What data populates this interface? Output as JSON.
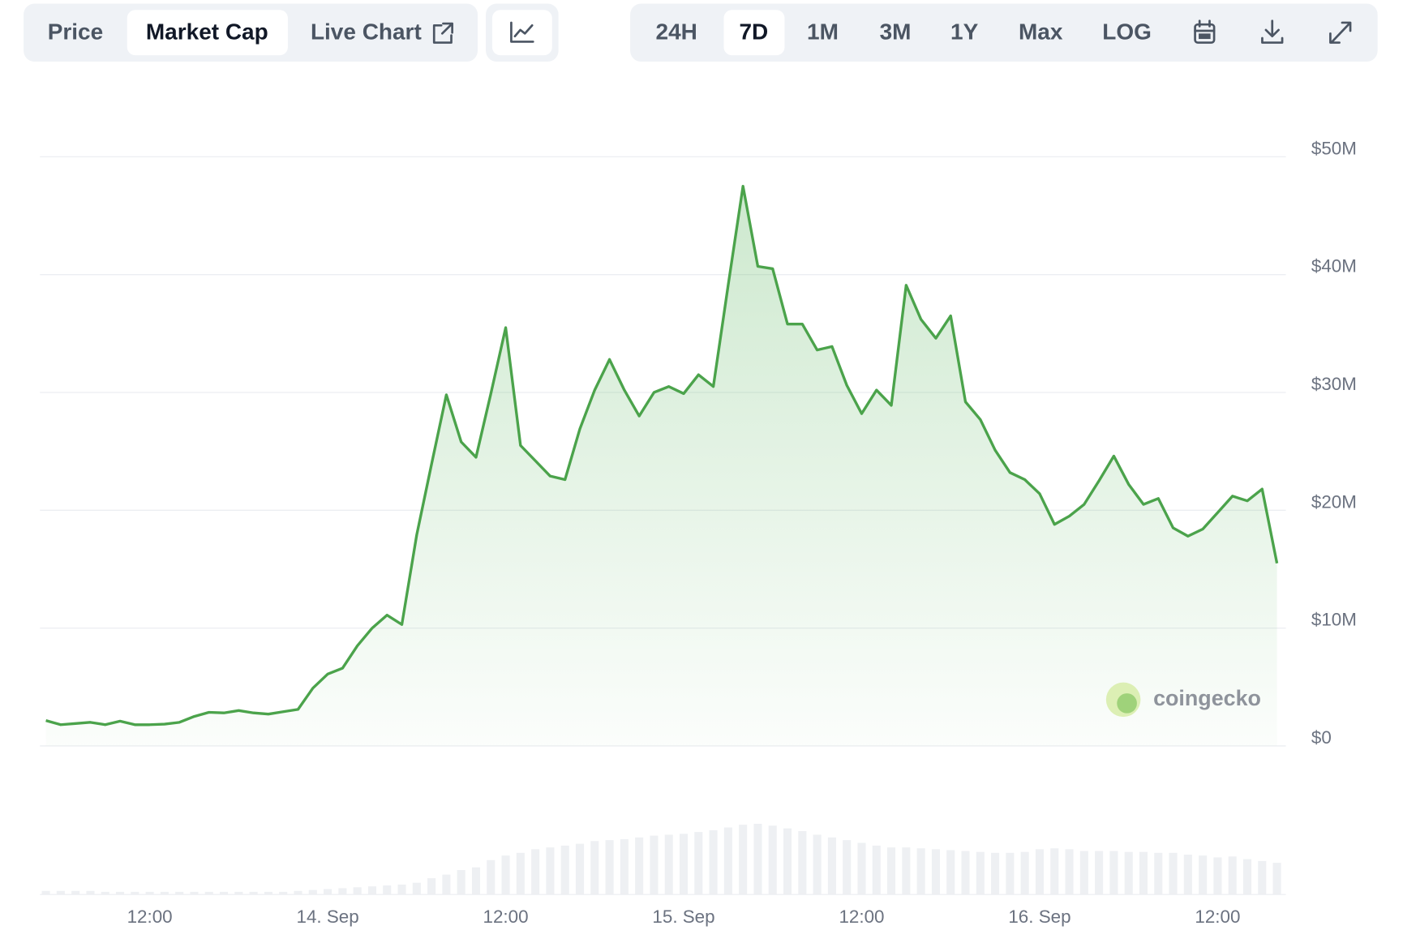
{
  "toolbar": {
    "tabs": [
      "Price",
      "Market Cap",
      "Live Chart"
    ],
    "ranges": [
      "24H",
      "7D",
      "1M",
      "3M",
      "1Y",
      "Max",
      "LOG"
    ]
  },
  "chart_data": {
    "type": "area",
    "x": [
      5,
      6,
      7,
      8,
      9,
      10,
      11,
      12,
      13,
      14,
      15,
      16,
      17,
      18,
      19,
      20,
      21,
      22,
      23,
      24,
      25,
      26,
      27,
      28,
      29,
      30,
      31,
      32,
      33,
      34,
      35,
      36,
      37,
      38,
      39,
      40,
      41,
      42,
      43,
      44,
      45,
      46,
      47,
      48,
      49,
      50,
      51,
      52,
      53,
      54,
      55,
      56,
      57,
      58,
      59,
      60,
      61,
      62,
      63,
      64,
      65,
      66,
      67,
      68,
      69,
      70,
      71,
      72,
      73,
      74,
      75,
      76,
      77,
      78,
      79,
      80,
      81,
      82,
      83,
      84,
      85,
      86,
      87,
      88
    ],
    "values": [
      2150000,
      1800000,
      1900000,
      2000000,
      1800000,
      2100000,
      1800000,
      1800000,
      1850000,
      2000000,
      2500000,
      2850000,
      2800000,
      3000000,
      2800000,
      2700000,
      2900000,
      3100000,
      4900000,
      6100000,
      6600000,
      8500000,
      10000000,
      11100000,
      10300000,
      17900000,
      23900000,
      29800000,
      25800000,
      24500000,
      29900000,
      35500000,
      25500000,
      24200000,
      22900000,
      22600000,
      26900000,
      30200000,
      32800000,
      30200000,
      28000000,
      30000000,
      30500000,
      29900000,
      31500000,
      30500000,
      39100000,
      47500000,
      40700000,
      40500000,
      35800000,
      35800000,
      33600000,
      33900000,
      30600000,
      28200000,
      30200000,
      28900000,
      39100000,
      36200000,
      34600000,
      36500000,
      29200000,
      27700000,
      25100000,
      23200000,
      22600000,
      21400000,
      18800000,
      19500000,
      20500000,
      22500000,
      24600000,
      22200000,
      20500000,
      21000000,
      18500000,
      17800000,
      18400000,
      19800000,
      21200000,
      20800000,
      21800000,
      15500000
    ],
    "color": "#4ba34b",
    "xlim": [
      4.6,
      88.6
    ],
    "xticks": [
      {
        "value": 12,
        "label": "12:00"
      },
      {
        "value": 24,
        "label": "14. Sep"
      },
      {
        "value": 36,
        "label": "12:00"
      },
      {
        "value": 48,
        "label": "15. Sep"
      },
      {
        "value": 60,
        "label": "12:00"
      },
      {
        "value": 72,
        "label": "16. Sep"
      },
      {
        "value": 84,
        "label": "12:00"
      }
    ],
    "ylim": [
      0,
      50000000
    ],
    "yticks": [
      {
        "value": 0,
        "label": "$0"
      },
      {
        "value": 10000000,
        "label": "$10M"
      },
      {
        "value": 20000000,
        "label": "$20M"
      },
      {
        "value": 30000000,
        "label": "$30M"
      },
      {
        "value": 40000000,
        "label": "$40M"
      },
      {
        "value": 50000000,
        "label": "$50M"
      }
    ],
    "grid": true,
    "volume": [
      4,
      4,
      4,
      4,
      3,
      3,
      3,
      3,
      3,
      3,
      3,
      3,
      3,
      3,
      3,
      3,
      3,
      4,
      5,
      6,
      7,
      8,
      9,
      10,
      11,
      13,
      18,
      22,
      27,
      30,
      38,
      43,
      46,
      50,
      52,
      54,
      56,
      59,
      60,
      61,
      63,
      65,
      66,
      67,
      69,
      71,
      74,
      77,
      78,
      76,
      73,
      70,
      66,
      63,
      60,
      57,
      54,
      52,
      52,
      51,
      50,
      49,
      48,
      47,
      46,
      46,
      47,
      50,
      51,
      50,
      48,
      48,
      48,
      47,
      47,
      46,
      46,
      44,
      43,
      41,
      42,
      39,
      37,
      35
    ],
    "volume_lim": [
      0,
      100
    ],
    "volume_color": "#eef0f3",
    "watermark": "coingecko"
  }
}
